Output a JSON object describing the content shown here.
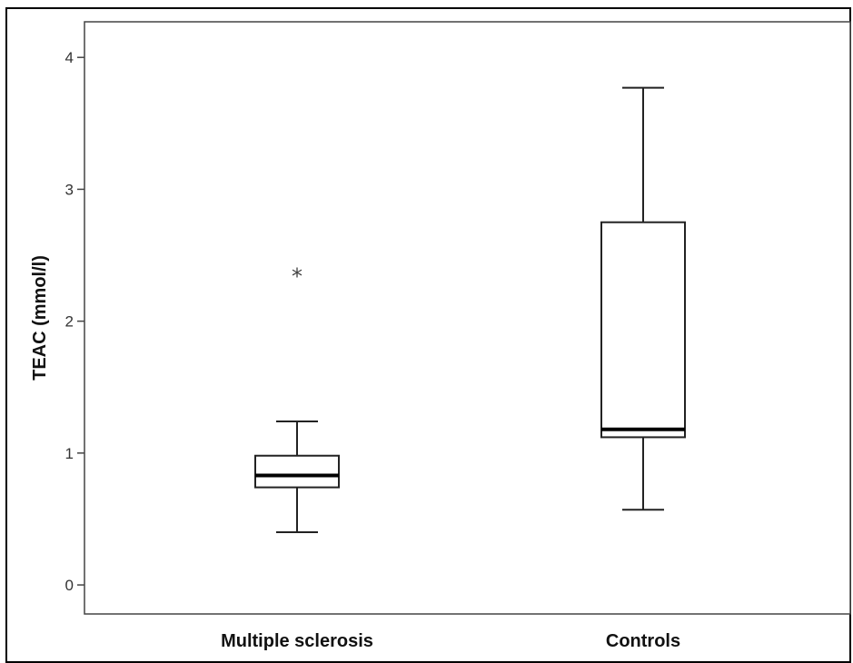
{
  "chart_data": {
    "type": "box",
    "title": "",
    "xlabel": "",
    "ylabel": "TEAC (mmol/l)",
    "ylim": [
      -0.22,
      4.27
    ],
    "yticks": [
      0,
      1,
      2,
      3,
      4
    ],
    "ytick_labels": [
      "0",
      "1",
      "2",
      "3",
      "4"
    ],
    "grid": false,
    "legend": "none",
    "categories": [
      "Multiple sclerosis",
      "Controls"
    ],
    "boxes": [
      {
        "category": "Multiple sclerosis",
        "whisker_low": 0.4,
        "q1": 0.74,
        "median": 0.83,
        "q3": 0.98,
        "whisker_high": 1.24,
        "outliers": [
          2.36
        ],
        "outlier_marker": "*"
      },
      {
        "category": "Controls",
        "whisker_low": 0.57,
        "q1": 1.12,
        "median": 1.18,
        "q3": 2.75,
        "whisker_high": 3.77,
        "outliers": []
      }
    ]
  },
  "colors": {
    "frame": "#000000",
    "axis": "#444444",
    "box_stroke": "#222222",
    "background": "#ffffff"
  }
}
